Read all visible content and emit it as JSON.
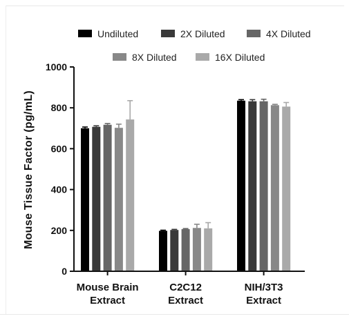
{
  "chart_data": {
    "type": "bar",
    "title": "",
    "xlabel": "",
    "ylabel": "Mouse Tissue Factor (pg/mL)",
    "ylim": [
      0,
      1000
    ],
    "yticks": [
      "0",
      "200",
      "400",
      "600",
      "800",
      "1000"
    ],
    "categories": [
      [
        "Mouse Brain",
        "Extract"
      ],
      [
        "C2C12",
        "Extract"
      ],
      [
        "NIH/3T3",
        "Extract"
      ]
    ],
    "series": [
      {
        "name": "Undiluted",
        "color": "#000000",
        "values": [
          700,
          198,
          835
        ],
        "errors": [
          6,
          3,
          5
        ]
      },
      {
        "name": "2X Diluted",
        "color": "#3a3a3a",
        "values": [
          707,
          202,
          832
        ],
        "errors": [
          5,
          3,
          8
        ]
      },
      {
        "name": "4X Diluted",
        "color": "#666666",
        "values": [
          717,
          206,
          832
        ],
        "errors": [
          6,
          3,
          10
        ]
      },
      {
        "name": "8X Diluted",
        "color": "#888888",
        "values": [
          702,
          212,
          813
        ],
        "errors": [
          18,
          18,
          4
        ]
      },
      {
        "name": "16X Diluted",
        "color": "#a9a9a9",
        "values": [
          743,
          210,
          806
        ],
        "errors": [
          92,
          28,
          20
        ]
      }
    ],
    "legend": "top",
    "grid": false
  }
}
